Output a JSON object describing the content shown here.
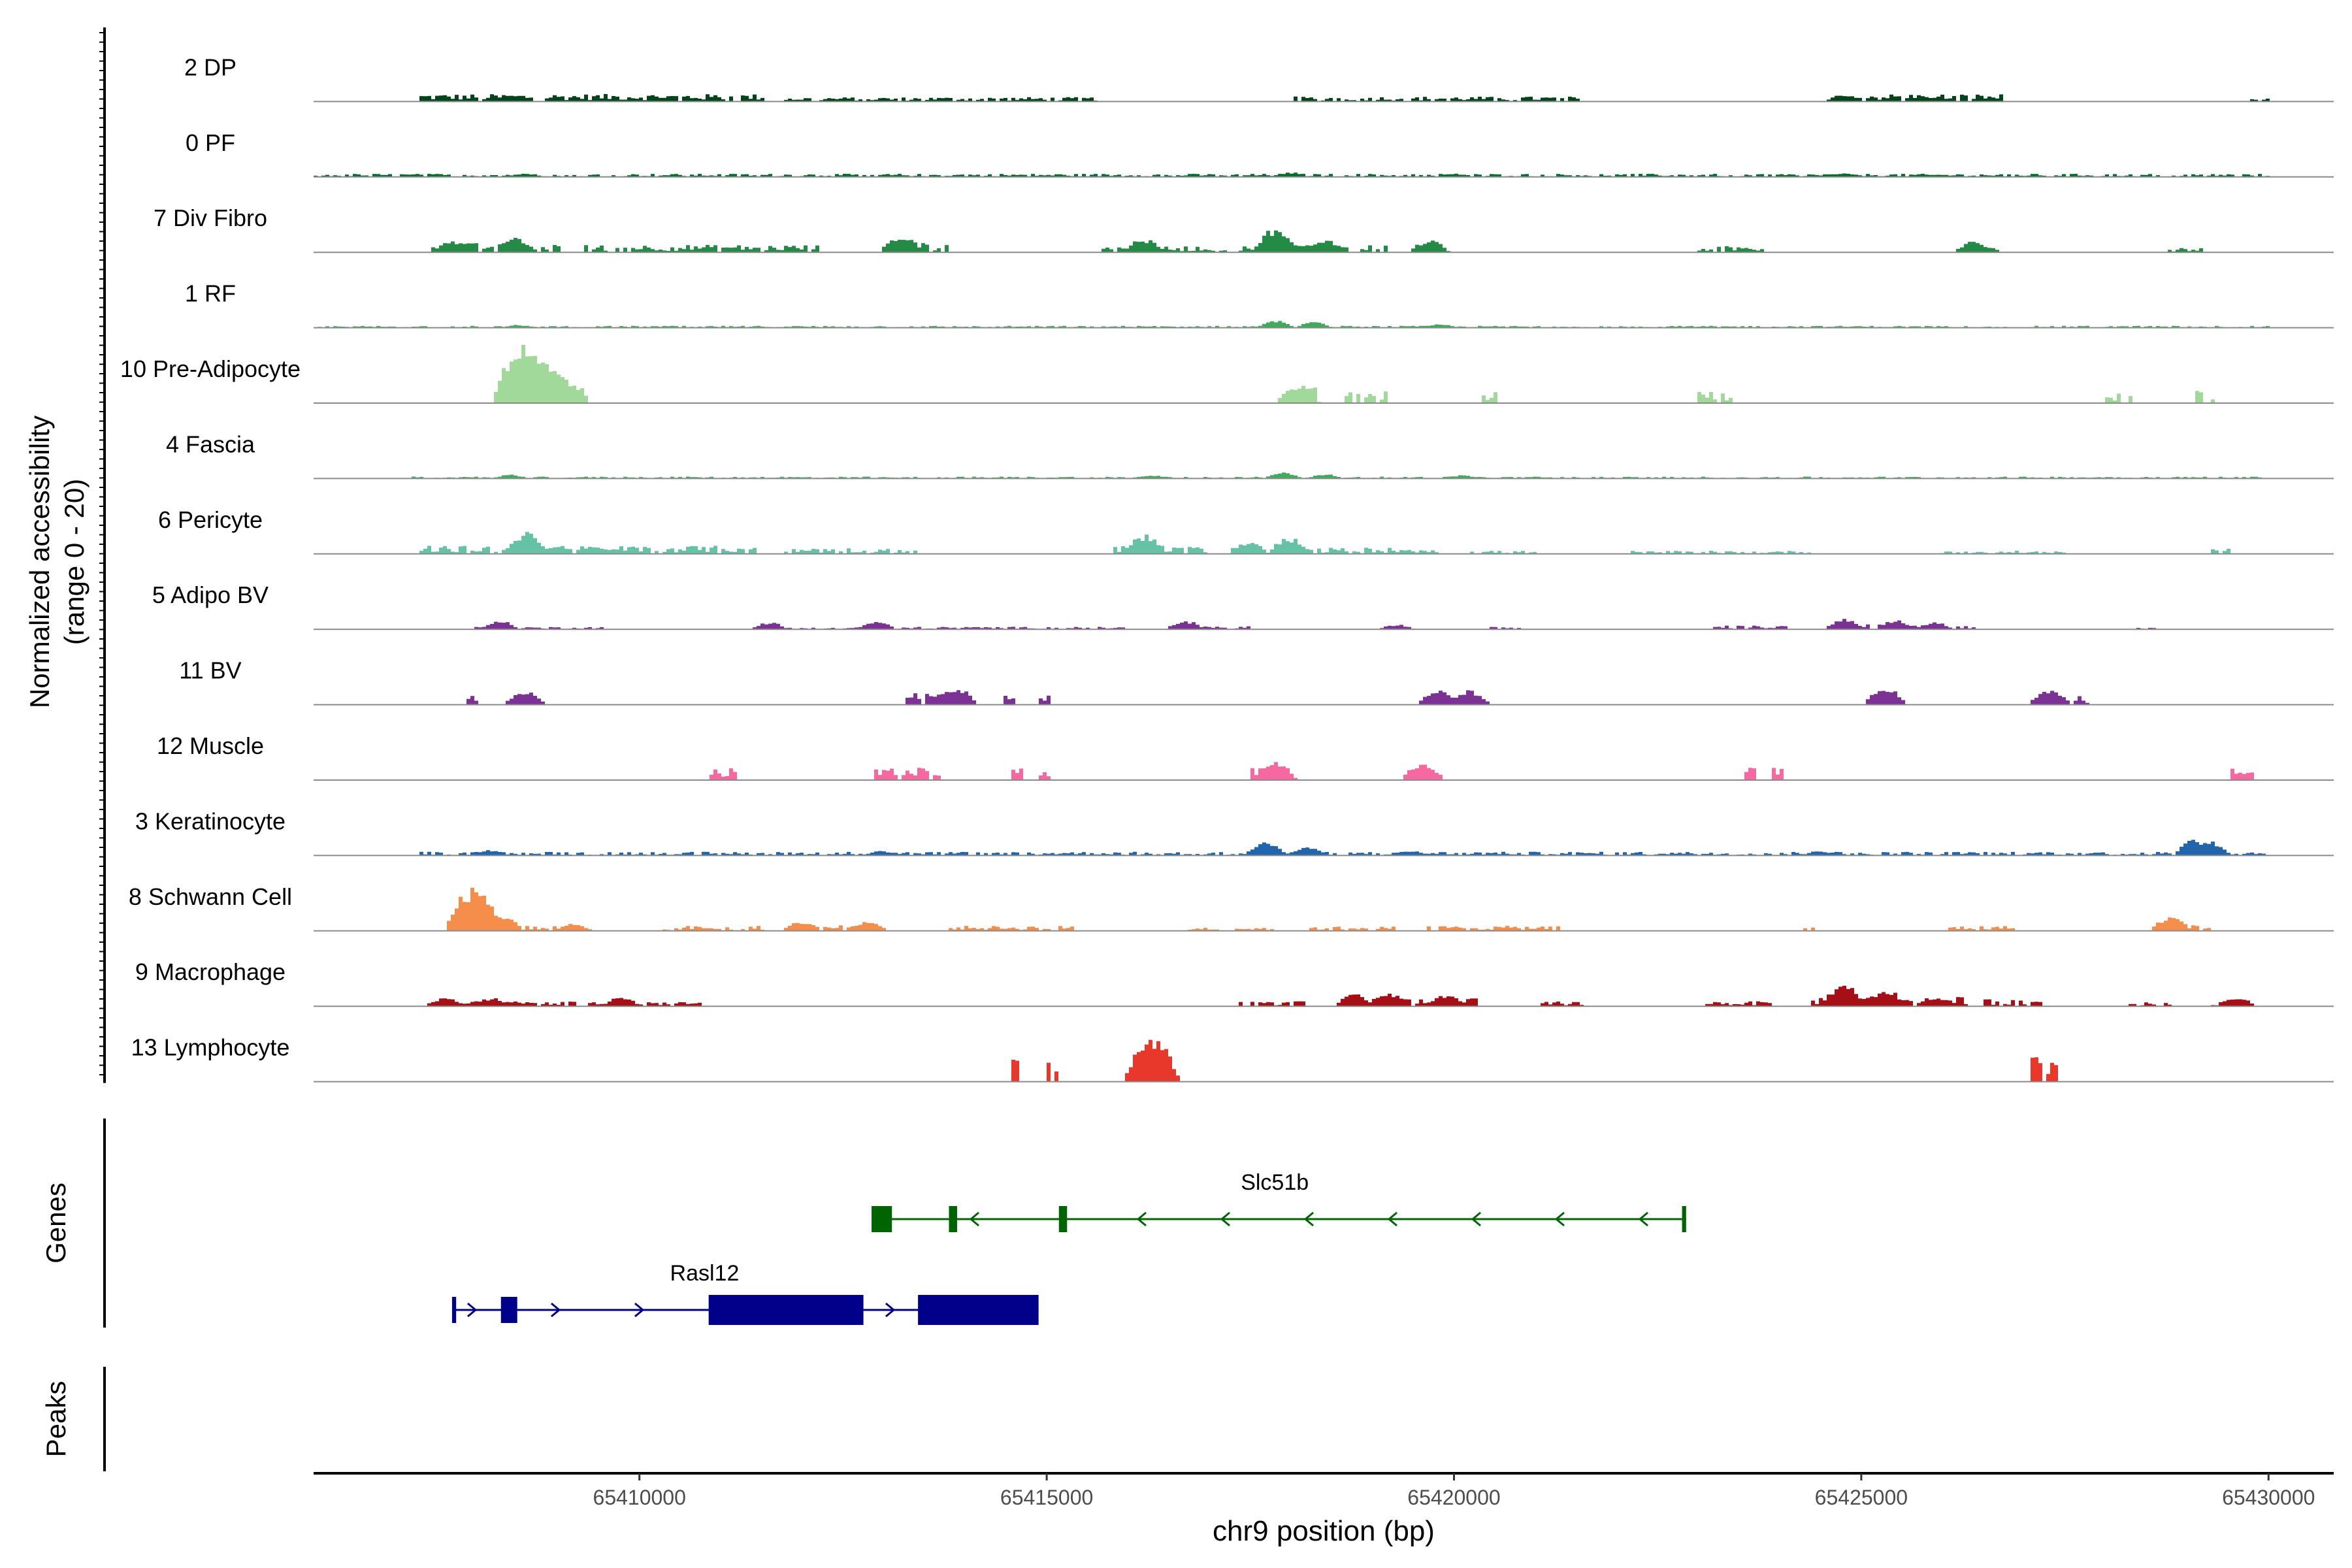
{
  "chart_data": {
    "type": "area",
    "title": "",
    "chrom": "chr9",
    "xlabel": "chr9 position (bp)",
    "xlim": [
      65406000,
      65430800
    ],
    "xticks": [
      65410000,
      65415000,
      65420000,
      65425000,
      65430000
    ],
    "xtick_labels": [
      "65410000",
      "65415000",
      "65420000",
      "65425000",
      "65430000"
    ],
    "coverage": {
      "ylabel_line1": "Normalized accessibility",
      "ylabel_line2": "(range 0 - 20)",
      "ylim": [
        0,
        20
      ],
      "tracks": [
        {
          "name": "2 DP",
          "color": "#00441b",
          "regions": [
            [
              65407300,
              65411500,
              1.2
            ],
            [
              65411800,
              65415600,
              0.7
            ],
            [
              65418000,
              65421600,
              0.8
            ],
            [
              65424600,
              65426800,
              1.2
            ],
            [
              65429800,
              65430000,
              0.5
            ]
          ],
          "peaks": [
            [
              65408400,
              1.2
            ],
            [
              65410300,
              1.0
            ],
            [
              65424800,
              1.4
            ],
            [
              65425800,
              1.1
            ]
          ]
        },
        {
          "name": "0 PF",
          "color": "#006d2c",
          "regions": [
            [
              65406000,
              65430000,
              0.5
            ]
          ],
          "peaks": [
            [
              65408600,
              0.8
            ],
            [
              65418000,
              1.0
            ],
            [
              65420000,
              0.7
            ],
            [
              65424800,
              0.8
            ]
          ]
        },
        {
          "name": "7 Div Fibro",
          "color": "#238b45",
          "regions": [
            [
              65407400,
              65409000,
              1.5
            ],
            [
              65409300,
              65412200,
              1.2
            ],
            [
              65413200,
              65413800,
              1.5
            ],
            [
              65415700,
              65417200,
              1.0
            ],
            [
              65417400,
              65419200,
              1.3
            ],
            [
              65419500,
              65419800,
              1.0
            ],
            [
              65423000,
              65423800,
              1.0
            ],
            [
              65426300,
              65426700,
              1.0
            ],
            [
              65428800,
              65429200,
              0.8
            ]
          ],
          "peaks": [
            [
              65407700,
              2.5
            ],
            [
              65408500,
              3.0
            ],
            [
              65413200,
              3.5
            ],
            [
              65416200,
              2.8
            ],
            [
              65417800,
              5.0
            ],
            [
              65418400,
              2.8
            ],
            [
              65419700,
              2.5
            ],
            [
              65426400,
              2.3
            ]
          ]
        },
        {
          "name": "1 RF",
          "color": "#41ab5d",
          "regions": [
            [
              65406000,
              65430000,
              0.3
            ]
          ],
          "peaks": [
            [
              65408500,
              0.6
            ],
            [
              65417800,
              1.5
            ],
            [
              65418300,
              1.2
            ],
            [
              65419800,
              0.8
            ]
          ]
        },
        {
          "name": "10 Pre-Adipocyte",
          "color": "#a1d99b",
          "regions": [
            [
              65408300,
              65409400,
              2.5
            ],
            [
              65418000,
              65418300,
              2.5
            ],
            [
              65418700,
              65419200,
              2.0
            ],
            [
              65420300,
              65420500,
              2.0
            ],
            [
              65423000,
              65423400,
              2.0
            ],
            [
              65428000,
              65428300,
              2.0
            ],
            [
              65429100,
              65429300,
              2.0
            ]
          ],
          "peaks": [
            [
              65408600,
              13.0
            ],
            [
              65408800,
              9.0
            ],
            [
              65409000,
              6.0
            ],
            [
              65418100,
              3.8
            ]
          ]
        },
        {
          "name": "4 Fascia",
          "color": "#41ab5d",
          "regions": [
            [
              65407200,
              65430000,
              0.3
            ]
          ],
          "peaks": [
            [
              65408400,
              0.8
            ],
            [
              65416300,
              0.7
            ],
            [
              65417900,
              1.4
            ],
            [
              65418400,
              0.9
            ],
            [
              65420100,
              0.7
            ]
          ]
        },
        {
          "name": "6 Pericyte",
          "color": "#66c2a4",
          "regions": [
            [
              65407300,
              65411400,
              1.3
            ],
            [
              65411800,
              65413400,
              1.0
            ],
            [
              65415800,
              65417000,
              1.3
            ],
            [
              65417300,
              65419800,
              1.0
            ],
            [
              65420200,
              65421000,
              0.5
            ],
            [
              65422200,
              65424400,
              0.5
            ],
            [
              65426000,
              65427500,
              0.5
            ],
            [
              65429300,
              65429500,
              1.0
            ]
          ],
          "peaks": [
            [
              65408600,
              4.5
            ],
            [
              65416200,
              4.0
            ],
            [
              65418000,
              3.5
            ],
            [
              65417500,
              2.5
            ],
            [
              65409500,
              1.5
            ]
          ]
        },
        {
          "name": "5 Adipo BV",
          "color": "#7b3294",
          "regions": [
            [
              65408000,
              65409600,
              0.4
            ],
            [
              65411500,
              65416000,
              0.4
            ],
            [
              65416700,
              65417500,
              0.5
            ],
            [
              65420400,
              65420800,
              0.4
            ],
            [
              65423200,
              65424100,
              0.6
            ],
            [
              65424800,
              65426400,
              0.8
            ],
            [
              65428400,
              65428600,
              0.5
            ]
          ],
          "peaks": [
            [
              65408300,
              1.8
            ],
            [
              65411600,
              1.5
            ],
            [
              65412900,
              1.8
            ],
            [
              65416700,
              1.8
            ],
            [
              65419300,
              1.0
            ],
            [
              65424800,
              2.3
            ],
            [
              65425400,
              2.0
            ],
            [
              65425900,
              1.5
            ]
          ]
        },
        {
          "name": "11 BV",
          "color": "#7b3294",
          "regions": [
            [
              65407900,
              65408000,
              2.0
            ],
            [
              65413300,
              65413900,
              2.0
            ],
            [
              65414500,
              65414600,
              1.5
            ],
            [
              65414900,
              65415000,
              1.5
            ],
            [
              65419800,
              65420200,
              2.0
            ],
            [
              65425300,
              65425400,
              2.0
            ],
            [
              65427300,
              65427800,
              1.5
            ]
          ],
          "peaks": [
            [
              65408600,
              3.0
            ],
            [
              65413900,
              3.5
            ],
            [
              65419800,
              3.0
            ],
            [
              65420200,
              3.0
            ],
            [
              65425300,
              3.5
            ],
            [
              65427300,
              3.0
            ]
          ]
        },
        {
          "name": "12 Muscle",
          "color": "#f768a1",
          "regions": [
            [
              65410900,
              65411200,
              2.0
            ],
            [
              65412800,
              65413700,
              2.0
            ],
            [
              65414600,
              65414700,
              2.0
            ],
            [
              65414900,
              65415000,
              2.0
            ],
            [
              65417500,
              65418000,
              2.0
            ],
            [
              65419600,
              65419700,
              2.0
            ],
            [
              65423600,
              65423700,
              2.0
            ],
            [
              65423900,
              65424000,
              2.0
            ],
            [
              65429500,
              65429800,
              2.0
            ]
          ],
          "peaks": [
            [
              65417800,
              4.0
            ],
            [
              65419600,
              3.5
            ]
          ]
        },
        {
          "name": "3 Keratinocyte",
          "color": "#2166ac",
          "regions": [
            [
              65407300,
              65430000,
              0.6
            ]
          ],
          "peaks": [
            [
              65408200,
              1.2
            ],
            [
              65413000,
              1.0
            ],
            [
              65417700,
              2.8
            ],
            [
              65418200,
              2.0
            ],
            [
              65419500,
              1.0
            ],
            [
              65424500,
              1.0
            ],
            [
              65429100,
              3.5
            ],
            [
              65429300,
              3.0
            ]
          ]
        },
        {
          "name": "8 Schwann Cell",
          "color": "#f58d4b",
          "regions": [
            [
              65407900,
              65409000,
              0.8
            ],
            [
              65410300,
              65411500,
              0.8
            ],
            [
              65411900,
              65413000,
              1.0
            ],
            [
              65413800,
              65415300,
              0.8
            ],
            [
              65416700,
              65417800,
              0.6
            ],
            [
              65418200,
              65419300,
              0.7
            ],
            [
              65419700,
              65421300,
              0.8
            ],
            [
              65424300,
              65424400,
              0.8
            ],
            [
              65426100,
              65426900,
              0.8
            ],
            [
              65428700,
              65429300,
              1.0
            ]
          ],
          "peaks": [
            [
              65407950,
              9.0
            ],
            [
              65408300,
              3.5
            ],
            [
              65409200,
              1.5
            ],
            [
              65412000,
              2.0
            ],
            [
              65412800,
              2.0
            ],
            [
              65428800,
              3.0
            ]
          ]
        },
        {
          "name": "9 Macrophage",
          "color": "#a50f15",
          "regions": [
            [
              65407500,
              65410800,
              0.8
            ],
            [
              65417400,
              65418200,
              0.8
            ],
            [
              65418700,
              65420300,
              1.3
            ],
            [
              65421100,
              65421600,
              0.8
            ],
            [
              65423100,
              65423900,
              0.8
            ],
            [
              65424400,
              65426300,
              1.5
            ],
            [
              65426500,
              65427200,
              1.2
            ],
            [
              65428300,
              65428800,
              0.8
            ],
            [
              65429300,
              65429700,
              0.8
            ]
          ],
          "peaks": [
            [
              65407600,
              1.8
            ],
            [
              65408200,
              1.8
            ],
            [
              65409800,
              2.0
            ],
            [
              65418800,
              2.5
            ],
            [
              65419200,
              3.0
            ],
            [
              65419900,
              2.5
            ],
            [
              65424800,
              4.5
            ],
            [
              65425300,
              3.5
            ],
            [
              65425900,
              2.0
            ],
            [
              65429600,
              2.0
            ]
          ]
        },
        {
          "name": "13 Lymphocyte",
          "color": "#e8382c",
          "regions": [
            [
              65414600,
              65414700,
              4.0
            ],
            [
              65415000,
              65415100,
              3.5
            ],
            [
              65416200,
              65416400,
              4.5
            ],
            [
              65427100,
              65427200,
              4.0
            ],
            [
              65427300,
              65427400,
              4.0
            ]
          ],
          "peaks": [
            [
              65416300,
              9.0
            ]
          ]
        }
      ]
    },
    "genes_track": {
      "label": "Genes",
      "genes": [
        {
          "name": "Slc51b",
          "strand": "-",
          "color": "#006400",
          "start": 65412850,
          "end": 65422850,
          "exons": [
            [
              65412850,
              65413100
            ],
            [
              65413800,
              65413900
            ],
            [
              65415150,
              65415250
            ],
            [
              65422800,
              65422850
            ]
          ]
        },
        {
          "name": "Rasl12",
          "strand": "+",
          "color": "#00008b",
          "start": 65407700,
          "end": 65414900,
          "exons": [
            [
              65407700,
              65407750
            ],
            [
              65408300,
              65408500
            ],
            [
              65410850,
              65412750
            ],
            [
              65413420,
              65414900
            ]
          ]
        }
      ]
    },
    "peaks_track": {
      "label": "Peaks",
      "peaks": []
    }
  }
}
